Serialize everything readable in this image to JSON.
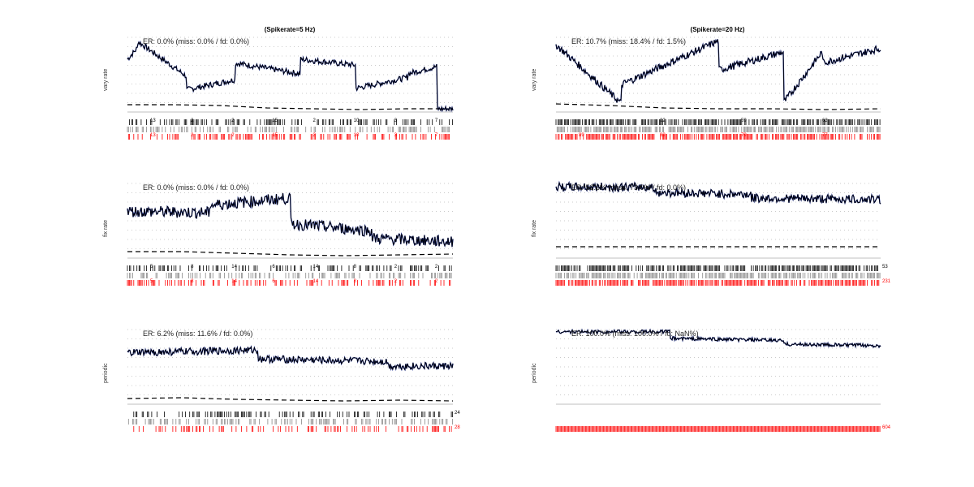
{
  "figure": {
    "left_title": "(Spikerate=5 Hz)",
    "right_title": "(Spikerate=20 Hz)"
  },
  "chart_data": [
    {
      "type": "line",
      "column": "left",
      "row": "vary-rate",
      "ylabel": "vary rate",
      "error_text": "ER: 0.0% (miss: 0.0% / fd: 0.0%)",
      "trace": {
        "kind": "sawtooth",
        "segments": [
          [
            0,
            0.7,
            0.85,
            0.75
          ],
          [
            0.03,
            0.95,
            0.47,
            0.7
          ],
          [
            0.18,
            0.28,
            0.42,
            0.4
          ],
          [
            0.33,
            0.65,
            0.5,
            0.55
          ],
          [
            0.53,
            0.7,
            0.62,
            0.8
          ],
          [
            0.7,
            0.3,
            0.45,
            0.6
          ],
          [
            0.86,
            0.5,
            0.6,
            0.95
          ],
          [
            0.95,
            0.05,
            0.02,
            1.0
          ]
        ],
        "noise": 0.04
      },
      "dashed_trend": [
        0.1,
        0.1,
        0.08,
        0.02,
        0.0,
        -0.02,
        0.0,
        0.0
      ],
      "raster_counts": {
        "black": [
          "13",
          "2",
          "2",
          "15",
          "2",
          "10",
          "3",
          "7"
        ],
        "red": [
          "13",
          "2",
          "2",
          "15",
          "2",
          "10",
          "3",
          "7"
        ]
      }
    },
    {
      "type": "line",
      "column": "right",
      "row": "vary-rate",
      "ylabel": "vary rate",
      "error_text": "ER: 10.7% (miss: 18.4% / fd: 1.5%)",
      "trace": {
        "kind": "wave",
        "segments": [
          [
            0,
            0.9,
            0.1,
            0.0
          ],
          [
            0.2,
            0.35,
            0.95,
            0.0
          ],
          [
            0.5,
            0.55,
            0.8,
            0.0
          ],
          [
            0.7,
            0.1,
            0.8,
            0.0
          ],
          [
            0.82,
            0.65,
            0.85,
            0.0
          ],
          [
            1.0,
            0.05,
            0.05,
            0.0
          ]
        ],
        "noise": 0.05
      },
      "dashed_trend": [
        0.12,
        0.08,
        0.02,
        0.0,
        0.0,
        -0.02,
        0.0
      ],
      "raster_counts": {
        "black": [
          "",
          "22",
          "59",
          "63"
        ],
        "red": [
          "89",
          "82",
          "79",
          "77"
        ]
      }
    },
    {
      "type": "line",
      "column": "left",
      "row": "fix-rate",
      "ylabel": "fix rate",
      "error_text": "ER: 0.0% (miss: 0.0% / fd: 0.0%)",
      "trace": {
        "kind": "flat-noisy",
        "segments": [
          [
            0,
            0.62,
            0.6,
            0.0
          ],
          [
            0.25,
            0.7,
            0.8,
            0.0
          ],
          [
            0.5,
            0.45,
            0.35,
            0.0
          ],
          [
            0.75,
            0.25,
            0.2,
            0.0
          ],
          [
            1.0,
            0.35,
            0.35,
            0.0
          ]
        ],
        "noise": 0.08
      },
      "dashed_trend": [
        0.08,
        0.08,
        0.04,
        0.0,
        -0.02,
        0.0,
        0.02
      ],
      "raster_counts": {
        "black": [
          "5",
          "8",
          "14",
          "6",
          "14",
          "8",
          "2",
          "2"
        ],
        "red": [
          "5",
          "8",
          "14",
          "6",
          "14",
          "8",
          "2",
          "2"
        ]
      }
    },
    {
      "type": "line",
      "column": "right",
      "row": "fix-rate",
      "ylabel": "fix rate",
      "error_text": "ER: 52.6% (miss: 73.0% / fd: 0.0%)",
      "trace": {
        "kind": "flat-noisy",
        "segments": [
          [
            0,
            0.95,
            0.95,
            0.0
          ],
          [
            0.3,
            0.88,
            0.85,
            0.0
          ],
          [
            0.6,
            0.8,
            0.78,
            0.0
          ],
          [
            1.0,
            0.76,
            0.76,
            0.0
          ]
        ],
        "noise": 0.06
      },
      "dashed_trend": [
        0.2,
        0.2,
        0.2,
        0.2,
        0.2
      ],
      "raster_counts": {
        "black": [
          "53"
        ],
        "red": [
          "231"
        ]
      }
    },
    {
      "type": "line",
      "column": "left",
      "row": "periodic",
      "ylabel": "periodic",
      "error_text": "ER: 6.2% (miss: 11.6% / fd: 0.0%)",
      "trace": {
        "kind": "flat-noisy",
        "segments": [
          [
            0,
            0.68,
            0.72,
            0.0
          ],
          [
            0.4,
            0.6,
            0.56,
            0.0
          ],
          [
            0.8,
            0.5,
            0.5,
            0.0
          ],
          [
            1.0,
            0.5,
            0.5,
            0.0
          ]
        ],
        "noise": 0.05
      },
      "dashed_trend": [
        0.06,
        0.08,
        0.04,
        0.02,
        0.0,
        0.02,
        0.0
      ],
      "raster_counts": {
        "black": [
          "24"
        ],
        "red": [
          "28"
        ]
      }
    },
    {
      "type": "line",
      "column": "right",
      "row": "periodic",
      "ylabel": "periodic",
      "error_text": "ER: 100.0% (miss: 100.0% / fd: NaN%)",
      "trace": {
        "kind": "flat-noisy",
        "segments": [
          [
            0,
            0.97,
            0.97,
            0.0
          ],
          [
            0.35,
            0.88,
            0.85,
            0.0
          ],
          [
            0.7,
            0.8,
            0.78,
            0.0
          ],
          [
            1.0,
            0.85,
            0.85,
            0.0
          ]
        ],
        "noise": 0.025
      },
      "dashed_trend": [],
      "raster_counts": {
        "black": [],
        "red": [
          "604"
        ]
      }
    }
  ],
  "colors": {
    "trace": "#000000",
    "trace_shadow": "#1a2fa0",
    "raster_detected": "#000000",
    "raster_gray": "#888888",
    "raster_true": "#ff0000",
    "grid": "#999999"
  }
}
